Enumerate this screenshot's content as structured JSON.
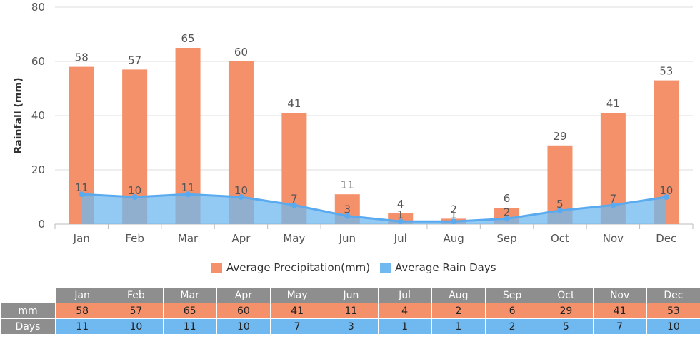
{
  "chart_data": {
    "type": "bar",
    "categories": [
      "Jan",
      "Feb",
      "Mar",
      "Apr",
      "May",
      "Jun",
      "Jul",
      "Aug",
      "Sep",
      "Oct",
      "Nov",
      "Dec"
    ],
    "series": [
      {
        "name": "Average Precipitation(mm)",
        "type": "bar",
        "color": "#f4906a",
        "values": [
          58,
          57,
          65,
          60,
          41,
          11,
          4,
          2,
          6,
          29,
          41,
          53
        ]
      },
      {
        "name": "Average Rain Days",
        "type": "area",
        "color": "#6fb8f0",
        "values": [
          11,
          10,
          11,
          10,
          7,
          3,
          1,
          1,
          2,
          5,
          7,
          10
        ]
      }
    ],
    "ylabel": "Rainfall (mm)",
    "ylim": [
      0,
      80
    ],
    "yticks": [
      0,
      20,
      40,
      60,
      80
    ],
    "grid": true,
    "legend": "bottom"
  },
  "table": {
    "row_labels": [
      "mm",
      "Days"
    ]
  }
}
